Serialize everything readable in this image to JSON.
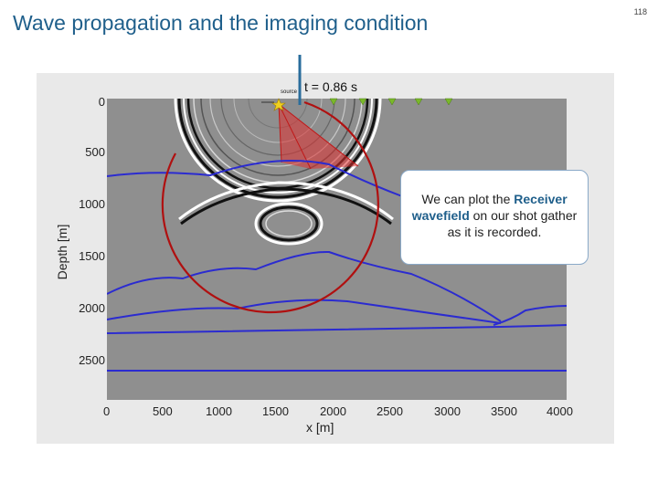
{
  "slide": {
    "title": "Wave propagation and the imaging condition",
    "page_number": "118"
  },
  "figure": {
    "time_label": "t = 0.86 s",
    "source_label": "source",
    "y_axis_label": "Depth [m]",
    "x_axis_label": "x [m]",
    "x_ticks": [
      "0",
      "500",
      "1000",
      "1500",
      "2000",
      "2500",
      "3000",
      "3500",
      "4000"
    ],
    "y_ticks": [
      "0",
      "500",
      "1000",
      "1500",
      "2000",
      "2500"
    ],
    "colors": {
      "layer_boundaries": "#2b2bd0",
      "receiver_arc": "#c01818",
      "ray_fan": "#e03030",
      "receivers": "#7ab82a",
      "marker_line": "#2a6d9c"
    }
  },
  "callout": {
    "text_before": "We can plot the ",
    "highlight1": "Receiver",
    "highlight2": "wavefield",
    "text_after": " on our shot gather as it is recorded."
  }
}
